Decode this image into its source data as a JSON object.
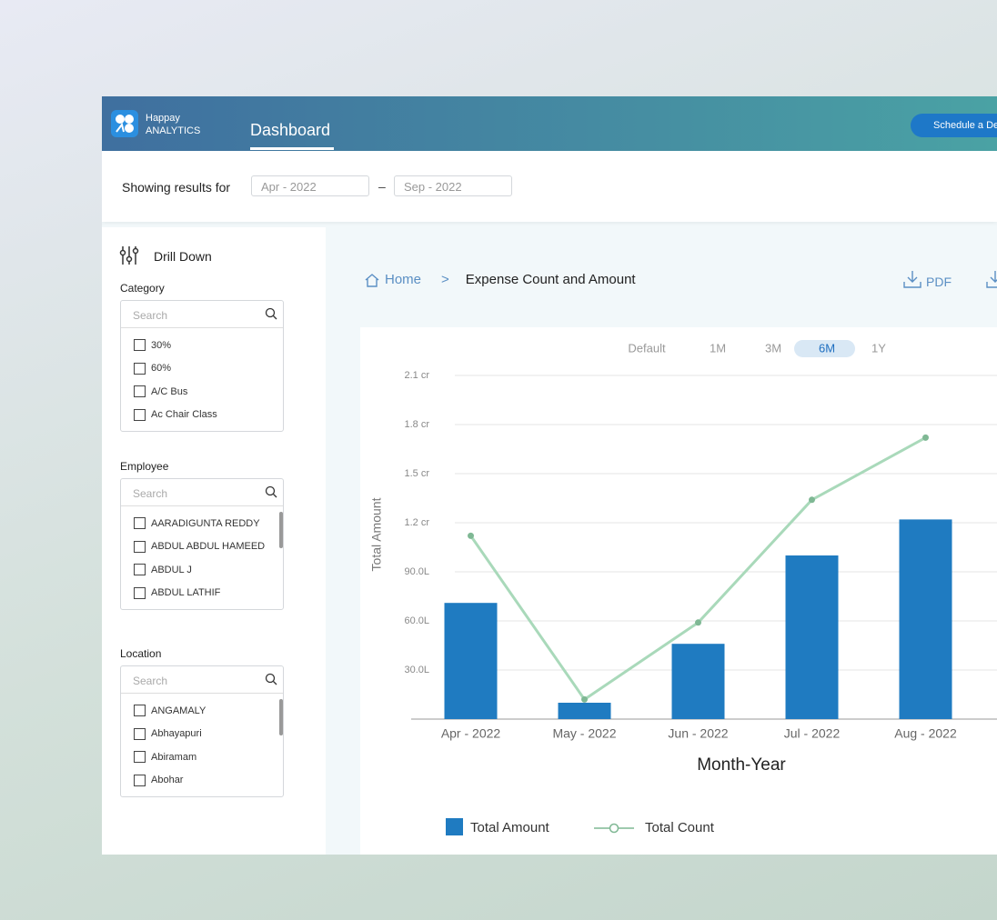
{
  "header": {
    "brand": "Happay",
    "brand_sub": "ANALYTICS",
    "nav": "Dashboard",
    "cta": "Schedule a De"
  },
  "filters": {
    "label": "Showing results for",
    "from": "Apr - 2022",
    "separator": "–",
    "to": "Sep - 2022"
  },
  "sidebar": {
    "title": "Drill Down",
    "sections": [
      {
        "title": "Category",
        "search": "Search",
        "items": [
          "30%",
          "60%",
          "A/C Bus",
          "Ac Chair Class"
        ]
      },
      {
        "title": "Employee",
        "search": "Search",
        "items": [
          "AARADIGUNTA REDDY",
          "ABDUL ABDUL HAMEED",
          "ABDUL J",
          "ABDUL LATHIF"
        ]
      },
      {
        "title": "Location",
        "search": "Search",
        "items": [
          "ANGAMALY",
          "Abhayapuri",
          "Abiramam",
          "Abohar"
        ]
      }
    ]
  },
  "breadcrumb": {
    "home": "Home",
    "separator": ">",
    "current": "Expense Count and Amount"
  },
  "exports": [
    "PDF"
  ],
  "ranges": {
    "options": [
      "Default",
      "1M",
      "3M",
      "6M",
      "1Y"
    ],
    "active": 3
  },
  "chart_data": {
    "type": "bar_line",
    "x_label": "Month-Year",
    "y_label": "Total Amount",
    "categories": [
      "Apr - 2022",
      "May - 2022",
      "Jun - 2022",
      "Jul - 2022",
      "Aug - 2022"
    ],
    "series": [
      {
        "name": "Total Amount",
        "type": "bar",
        "color": "#1f7bc1",
        "values": [
          71,
          10,
          46,
          100,
          122
        ]
      },
      {
        "name": "Total Count",
        "type": "line",
        "color": "#a9d9ba",
        "values": [
          112,
          12,
          59,
          134,
          172
        ]
      }
    ],
    "ylim": [
      0,
      210
    ],
    "yticks": [
      {
        "value": 30,
        "label": "30.0L"
      },
      {
        "value": 60,
        "label": "60.0L"
      },
      {
        "value": 90,
        "label": "90.0L"
      },
      {
        "value": 120,
        "label": "1.2 cr"
      },
      {
        "value": 150,
        "label": "1.5 cr"
      },
      {
        "value": 180,
        "label": "1.8 cr"
      },
      {
        "value": 210,
        "label": "2.1 cr"
      }
    ],
    "grid": true
  }
}
